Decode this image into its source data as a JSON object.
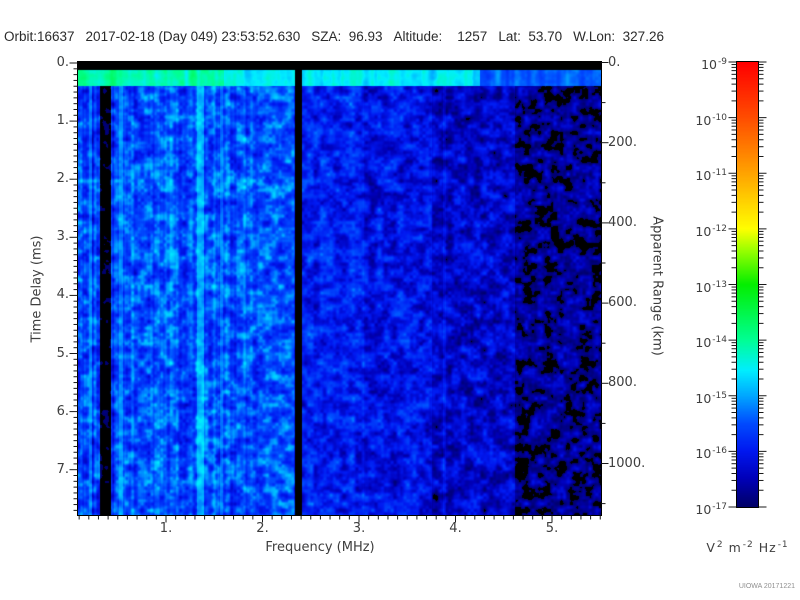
{
  "header": {
    "segments": [
      "Orbit:16637",
      "2017-02-18 (Day 049) 23:53:52.630",
      "SZA:  96.93",
      "Altitude:    1257",
      "Lat:  53.70",
      "W.Lon:  327.26"
    ]
  },
  "watermark": "UIOWA 20171221",
  "chart_data": {
    "type": "heatmap",
    "subtype": "radar-sounder-ionogram-spectrogram",
    "title": "",
    "xlabel": "Frequency (MHz)",
    "x_range": [
      0.09,
      5.51
    ],
    "x_major_ticks": [
      1,
      2,
      3,
      4,
      5
    ],
    "x_major_tick_labels": [
      "1.",
      "2.",
      "3.",
      "4.",
      "5."
    ],
    "x_minor_step": 0.1,
    "left_axis": {
      "label": "Time Delay (ms)",
      "range": [
        0,
        7.78
      ],
      "major_ticks": [
        0,
        1,
        2,
        3,
        4,
        5,
        6,
        7
      ],
      "major_tick_labels": [
        "0.",
        "1.",
        "2.",
        "3.",
        "4.",
        "5.",
        "6.",
        "7."
      ],
      "minor_step": 0.1
    },
    "right_axis": {
      "label": "Apparent Range (km)",
      "range": [
        0,
        1128
      ],
      "major_ticks": [
        0,
        200,
        400,
        600,
        800,
        1000
      ],
      "major_tick_labels": [
        "0.",
        "200.",
        "400.",
        "600.",
        "800.",
        "1000."
      ],
      "minor_step": 100
    },
    "colorbar": {
      "scale": "log",
      "label_base": "10",
      "exponent_ticks": [
        -9,
        -10,
        -11,
        -12,
        -13,
        -14,
        -15,
        -16,
        -17
      ],
      "range_exponents": [
        -17,
        -9
      ],
      "units_segments": [
        [
          "V",
          "2"
        ],
        [
          "m",
          "-2"
        ],
        [
          "Hz",
          "-1"
        ]
      ],
      "colormap_stops": [
        [
          -17,
          "#000068"
        ],
        [
          -16.5,
          "#0000b8"
        ],
        [
          -16,
          "#0018f0"
        ],
        [
          -15.5,
          "#004cff"
        ],
        [
          -15,
          "#00a8ff"
        ],
        [
          -14.55,
          "#00eeff"
        ],
        [
          -14,
          "#00ff94"
        ],
        [
          -13,
          "#04ef00"
        ],
        [
          -12.4,
          "#96ff00"
        ],
        [
          -12,
          "#ffff00"
        ],
        [
          -11,
          "#ffa400"
        ],
        [
          -10,
          "#ff4e00"
        ],
        [
          -9,
          "#ff0000"
        ]
      ]
    },
    "heatmap_model": {
      "description": "Noisy blue ionogram: black transmit band at top, bright cyan-green surface band near 0.2-0.4 ms, speckled blue body brightest below 2.3 MHz, dark vertical interference gaps near 0.35 and 2.35 MHz, bright stripe near 1.35 MHz, progressively darker with black patches above ~3.9 MHz.",
      "seed": 20171221,
      "tau_max_ms": 7.78,
      "top_black_ms": 0.13,
      "surface_band_ms": [
        0.13,
        0.4
      ],
      "surface_levels": [
        [
          0.09,
          1.6,
          -14.15
        ],
        [
          1.6,
          4.25,
          -14.6
        ],
        [
          4.25,
          5.51,
          -15.35
        ]
      ],
      "surface_noise_amp": 0.75,
      "base_levels": [
        [
          0.09,
          0.46,
          -15.75,
          0.9
        ],
        [
          0.46,
          2.33,
          -15.5,
          0.85
        ],
        [
          2.33,
          3.05,
          -15.95,
          0.8
        ],
        [
          3.05,
          3.9,
          -16.1,
          0.8
        ],
        [
          3.9,
          4.62,
          -16.35,
          0.8
        ],
        [
          4.62,
          5.51,
          -16.8,
          0.85
        ]
      ],
      "stripe_regions": [
        [
          0.09,
          0.46,
          0.6
        ],
        [
          0.46,
          1.95,
          0.42
        ],
        [
          1.95,
          5.51,
          0.1
        ]
      ],
      "bright_stripes": [
        [
          1.325,
          1.39,
          -14.9
        ],
        [
          0.515,
          0.55,
          -15.15
        ],
        [
          1.555,
          1.59,
          -15.25
        ],
        [
          0.205,
          0.23,
          -15.2
        ]
      ],
      "dark_bands": [
        [
          0.315,
          0.43,
          -17.15,
          0.4
        ],
        [
          2.335,
          2.41,
          -17.6,
          0.13
        ]
      ],
      "soft_dark_bands": [
        [
          3.76,
          3.87,
          -0.3
        ]
      ],
      "black_below_exp": -17
    }
  }
}
